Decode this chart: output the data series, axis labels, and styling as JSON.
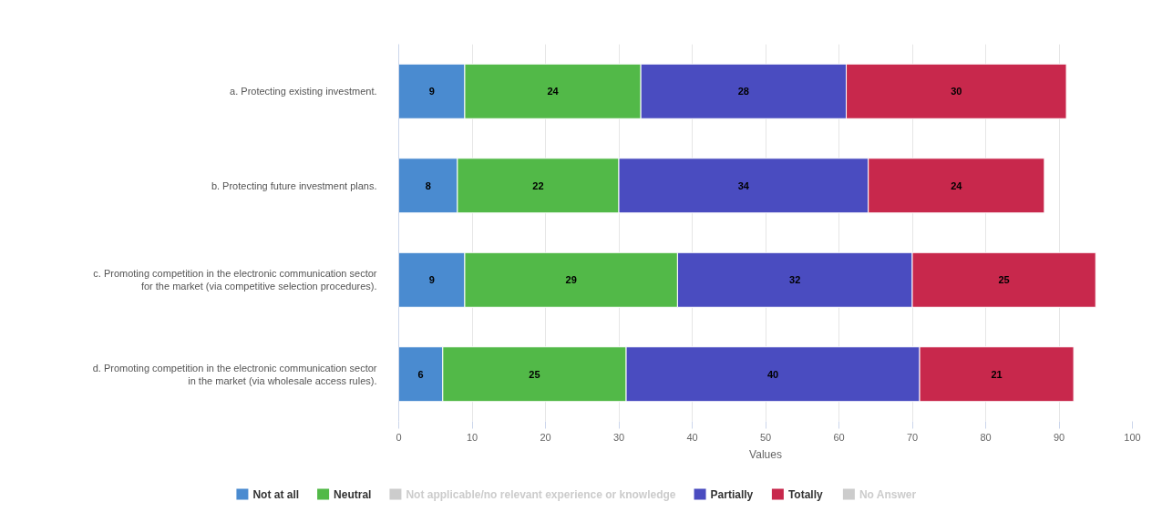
{
  "chart_data": {
    "type": "bar",
    "orientation": "horizontal",
    "stacked": true,
    "categories": [
      "a. Protecting existing investment.",
      "b. Protecting future investment plans.",
      "c. Promoting competition in the electronic communication sector for the market (via competitive selection procedures).",
      "d. Promoting competition in the electronic communication sector in the market (via wholesale access rules)."
    ],
    "series": [
      {
        "name": "Not at all",
        "color": "#4a8bd0",
        "values": [
          9,
          8,
          9,
          6
        ]
      },
      {
        "name": "Neutral",
        "color": "#52b948",
        "values": [
          24,
          22,
          29,
          25
        ]
      },
      {
        "name": "Not applicable/no relevant experience or knowledge",
        "color": "#cccccc",
        "values": [
          null,
          null,
          null,
          null
        ]
      },
      {
        "name": "Partially",
        "color": "#4a4cc0",
        "values": [
          28,
          34,
          32,
          40
        ]
      },
      {
        "name": "Totally",
        "color": "#c8284c",
        "values": [
          30,
          24,
          25,
          21
        ]
      },
      {
        "name": "No Answer",
        "color": "#cccccc",
        "values": [
          null,
          null,
          null,
          null
        ]
      }
    ],
    "xlabel": "Values",
    "xlim": [
      0,
      100
    ],
    "xticks": [
      0,
      10,
      20,
      30,
      40,
      50,
      60,
      70,
      80,
      90,
      100
    ],
    "grid": "x",
    "legend": "bottom",
    "data_labels": true
  }
}
